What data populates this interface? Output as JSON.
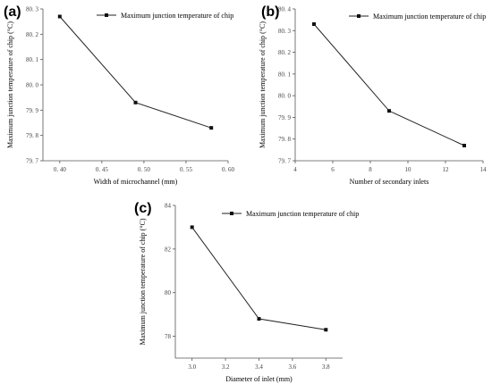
{
  "chart_data": [
    {
      "panel": "(a)",
      "type": "line",
      "xlabel": "Width of microchannel (mm)",
      "ylabel": "Maximum junction temperature of chip (°C)",
      "xlim": [
        0.38,
        0.6
      ],
      "ylim": [
        79.7,
        80.3
      ],
      "xticks": [
        0.4,
        0.45,
        0.5,
        0.55,
        0.6
      ],
      "xtick_labels": [
        "0. 40",
        "0. 45",
        "0. 50",
        "0. 55",
        "0. 60"
      ],
      "yticks": [
        79.7,
        79.8,
        79.9,
        80.0,
        80.1,
        80.2,
        80.3
      ],
      "ytick_labels": [
        "79. 7",
        "79. 8",
        "79. 9",
        "80. 0",
        "80. 1",
        "80. 2",
        "80. 3"
      ],
      "series": [
        {
          "name": "Maximum junction temperature of chip",
          "x": [
            0.4,
            0.49,
            0.58
          ],
          "y": [
            80.27,
            79.93,
            79.83
          ]
        }
      ],
      "legend": "top-right"
    },
    {
      "panel": "(b)",
      "type": "line",
      "xlabel": "Number of secondary inlets",
      "ylabel": "Maximum junction temperature of chip (°C)",
      "xlim": [
        4,
        14
      ],
      "ylim": [
        79.7,
        80.4
      ],
      "xticks": [
        4,
        6,
        8,
        10,
        12,
        14
      ],
      "xtick_labels": [
        "4",
        "6",
        "8",
        "10",
        "12",
        "14"
      ],
      "yticks": [
        79.7,
        79.8,
        79.9,
        80.0,
        80.1,
        80.2,
        80.3,
        80.4
      ],
      "ytick_labels": [
        "79. 7",
        "79. 8",
        "79. 9",
        "80. 0",
        "80. 1",
        "80. 2",
        "80. 3",
        "80. 4"
      ],
      "series": [
        {
          "name": "Maximum junction temperature of chip",
          "x": [
            5,
            9,
            13
          ],
          "y": [
            80.33,
            79.93,
            79.77
          ]
        }
      ],
      "legend": "top-right"
    },
    {
      "panel": "(c)",
      "type": "line",
      "xlabel": "Diameter of inlet (mm)",
      "ylabel": "Maximum junction temperature of chip (°C)",
      "xlim": [
        2.9,
        3.9
      ],
      "ylim": [
        77,
        84
      ],
      "xticks": [
        3.0,
        3.2,
        3.4,
        3.6,
        3.8
      ],
      "xtick_labels": [
        "3.0",
        "3.2",
        "3.4",
        "3.6",
        "3.8"
      ],
      "yticks": [
        78,
        80,
        82,
        84
      ],
      "ytick_labels": [
        "78",
        "80",
        "82",
        "84"
      ],
      "series": [
        {
          "name": "Maximum junction temperature of chip",
          "x": [
            3.0,
            3.4,
            3.8
          ],
          "y": [
            83.0,
            78.8,
            78.3
          ]
        }
      ],
      "legend": "top-right"
    }
  ]
}
